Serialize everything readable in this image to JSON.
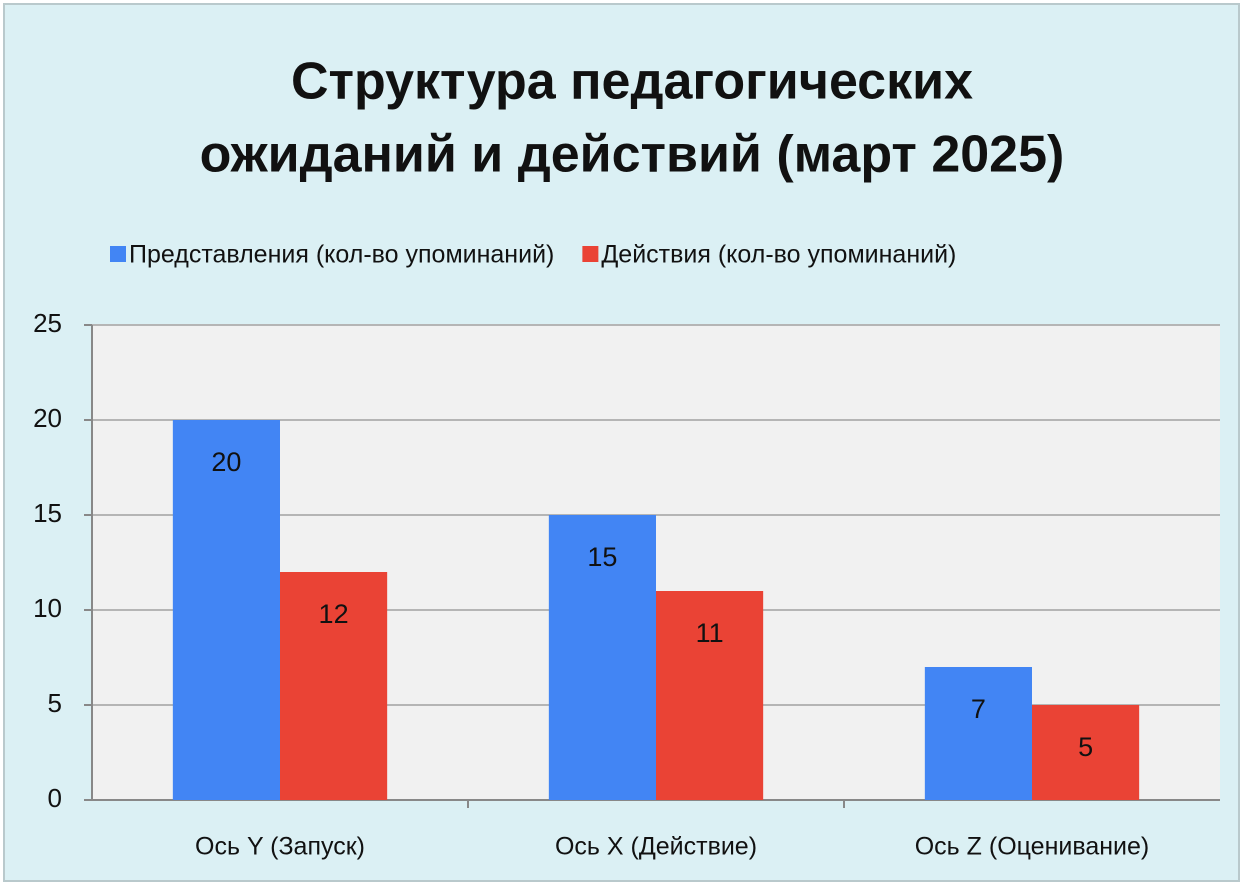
{
  "chart_data": {
    "type": "bar",
    "title": [
      "Структура педагогических",
      "ожиданий и действий (март 2025)"
    ],
    "categories": [
      "Ось Y (Запуск)",
      "Ось X (Действие)",
      "Ось Z (Оценивание)"
    ],
    "series": [
      {
        "name": "Представления (кол-во упоминаний)",
        "color": "#4285f4",
        "values": [
          20,
          15,
          7
        ]
      },
      {
        "name": "Действия (кол-во упоминаний)",
        "color": "#ea4335",
        "values": [
          12,
          11,
          5
        ]
      }
    ],
    "ylim": [
      0,
      25
    ],
    "yticks": [
      0,
      5,
      10,
      15,
      20,
      25
    ],
    "grid": true,
    "legend": "top"
  }
}
